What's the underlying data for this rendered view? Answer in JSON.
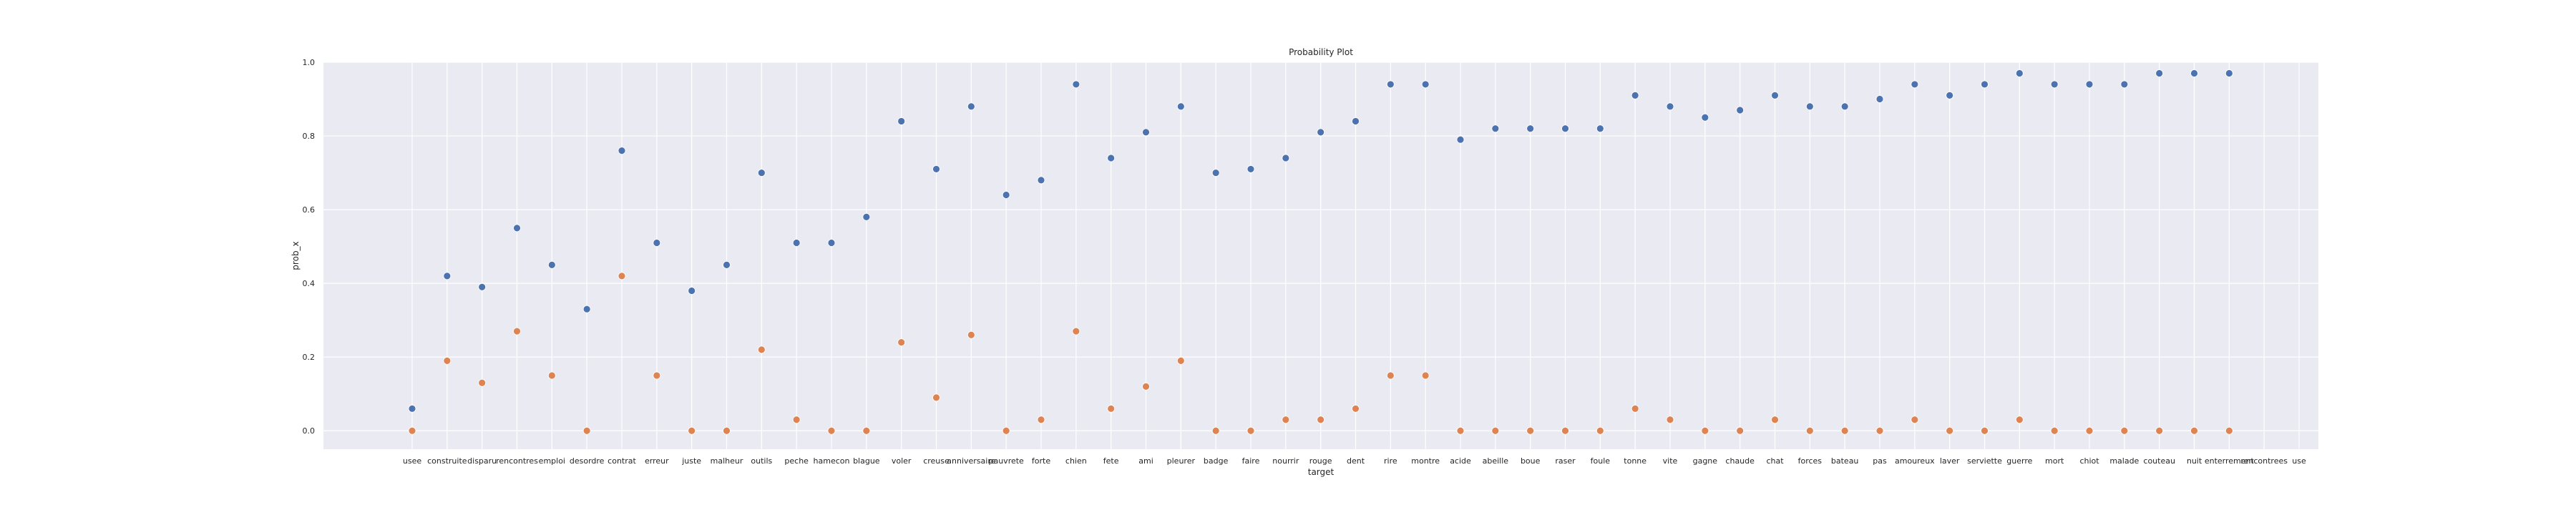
{
  "chart_data": {
    "type": "scatter",
    "title": "Probability Plot",
    "xlabel": "target",
    "ylabel": "prob_x",
    "ylim": [
      -0.05,
      1.0
    ],
    "yticks": [
      0.0,
      0.2,
      0.4,
      0.6,
      0.8,
      1.0
    ],
    "ytick_labels": [
      "0.0",
      "0.2",
      "0.4",
      "0.6",
      "0.8",
      "1.0"
    ],
    "grid": true,
    "background": "#eaeaf2",
    "categories": [
      "usee",
      "construite",
      "disparu",
      "rencontres",
      "emploi",
      "desordre",
      "contrat",
      "erreur",
      "juste",
      "malheur",
      "outils",
      "peche",
      "hamecon",
      "blague",
      "voler",
      "creuse",
      "anniversaire",
      "pauvrete",
      "forte",
      "chien",
      "fete",
      "ami",
      "pleurer",
      "badge",
      "faire",
      "nourrir",
      "rouge",
      "dent",
      "rire",
      "montre",
      "acide",
      "abeille",
      "boue",
      "raser",
      "foule",
      "tonne",
      "vite",
      "gagne",
      "chaude",
      "chat",
      "forces",
      "bateau",
      "pas",
      "amoureux",
      "laver",
      "serviette",
      "guerre",
      "mort",
      "chiot",
      "malade",
      "couteau",
      "nuit",
      "enterrement",
      "rencontrees",
      "use"
    ],
    "series": [
      {
        "color": "#4c72b0",
        "values": [
          0.06,
          0.42,
          0.39,
          0.55,
          0.45,
          0.33,
          0.76,
          0.51,
          0.38,
          0.45,
          0.7,
          0.51,
          0.51,
          0.58,
          0.84,
          0.71,
          0.88,
          0.64,
          0.68,
          0.94,
          0.74,
          0.81,
          0.88,
          0.7,
          0.71,
          0.74,
          0.81,
          0.84,
          0.94,
          0.94,
          0.79,
          0.82,
          0.82,
          0.82,
          0.82,
          0.91,
          0.88,
          0.85,
          0.87,
          0.91,
          0.88,
          0.88,
          0.9,
          0.94,
          0.91,
          0.94,
          0.97,
          0.94,
          0.94,
          0.94,
          0.97,
          0.97,
          0.97,
          null,
          null
        ]
      },
      {
        "color": "#dd8452",
        "values": [
          0.0,
          0.19,
          0.13,
          0.27,
          0.15,
          0.0,
          0.42,
          0.15,
          0.0,
          0.0,
          0.22,
          0.03,
          0.0,
          0.0,
          0.24,
          0.09,
          0.26,
          0.0,
          0.03,
          0.27,
          0.06,
          0.12,
          0.19,
          0.0,
          0.0,
          0.03,
          0.03,
          0.06,
          0.15,
          0.15,
          0.0,
          0.0,
          0.0,
          0.0,
          0.0,
          0.06,
          0.03,
          0.0,
          0.0,
          0.03,
          0.0,
          0.0,
          0.0,
          0.03,
          0.0,
          0.0,
          0.03,
          0.0,
          0.0,
          0.0,
          0.0,
          0.0,
          0.0,
          null,
          null
        ]
      }
    ]
  }
}
